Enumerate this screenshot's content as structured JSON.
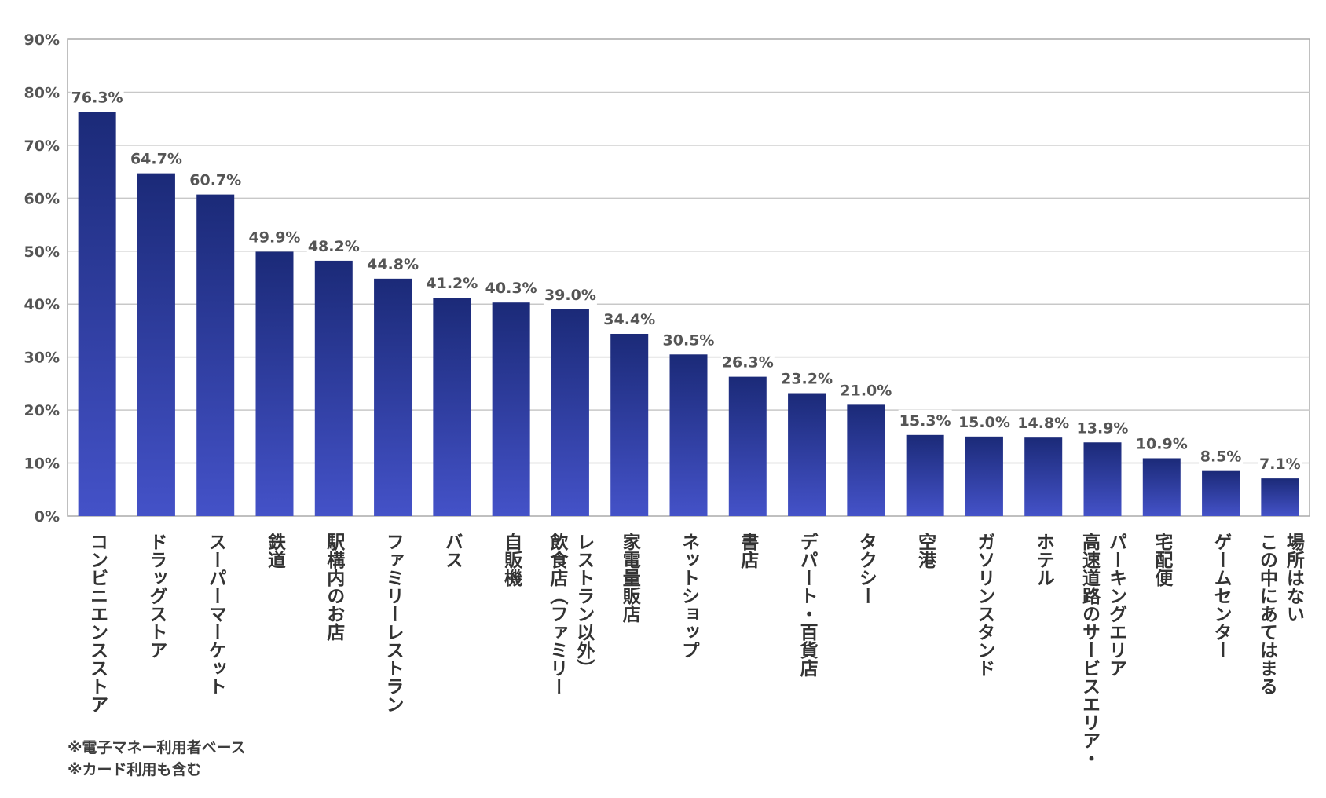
{
  "chart_data": {
    "type": "bar",
    "title": "",
    "xlabel": "",
    "ylabel": "",
    "ylim": [
      0,
      90
    ],
    "yticks": [
      "0%",
      "10%",
      "20%",
      "30%",
      "40%",
      "50%",
      "60%",
      "70%",
      "80%",
      "90%"
    ],
    "grid": true,
    "legend": "none",
    "categories": [
      [
        "コンビニエンスストア"
      ],
      [
        "ドラッグストア"
      ],
      [
        "スーパーマーケット"
      ],
      [
        "鉄道"
      ],
      [
        "駅構内のお店"
      ],
      [
        "ファミリーレストラン"
      ],
      [
        "バス"
      ],
      [
        "自販機"
      ],
      [
        "飲食店（ファミリー",
        "レストラン以外）"
      ],
      [
        "家電量販店"
      ],
      [
        "ネットショップ"
      ],
      [
        "書店"
      ],
      [
        "デパート・百貨店"
      ],
      [
        "タクシー"
      ],
      [
        "空港"
      ],
      [
        "ガソリンスタンド"
      ],
      [
        "ホテル"
      ],
      [
        "高速道路のサービスエリア・",
        "パーキングエリア"
      ],
      [
        "宅配便"
      ],
      [
        "ゲームセンター"
      ],
      [
        "この中にあてはまる",
        "場所はない"
      ]
    ],
    "values": [
      76.3,
      64.7,
      60.7,
      49.9,
      48.2,
      44.8,
      41.2,
      40.3,
      39.0,
      34.4,
      30.5,
      26.3,
      23.2,
      21.0,
      15.3,
      15.0,
      14.8,
      13.9,
      10.9,
      8.5,
      7.1
    ],
    "data_labels": [
      "76.3%",
      "64.7%",
      "60.7%",
      "49.9%",
      "48.2%",
      "44.8%",
      "41.2%",
      "40.3%",
      "39.0%",
      "34.4%",
      "30.5%",
      "26.3%",
      "23.2%",
      "21.0%",
      "15.3%",
      "15.0%",
      "14.8%",
      "13.9%",
      "10.9%",
      "8.5%",
      "7.1%"
    ],
    "colors": {
      "bar_top": "#1b2a78",
      "bar_bottom": "#4452c8",
      "grid": "#c8c8c8",
      "axis": "#aaaaaa",
      "text": "#555555",
      "label": "#333333"
    }
  },
  "notes": {
    "line1": "※電子マネー利用者ベース",
    "line2": "※カード利用も含む"
  }
}
